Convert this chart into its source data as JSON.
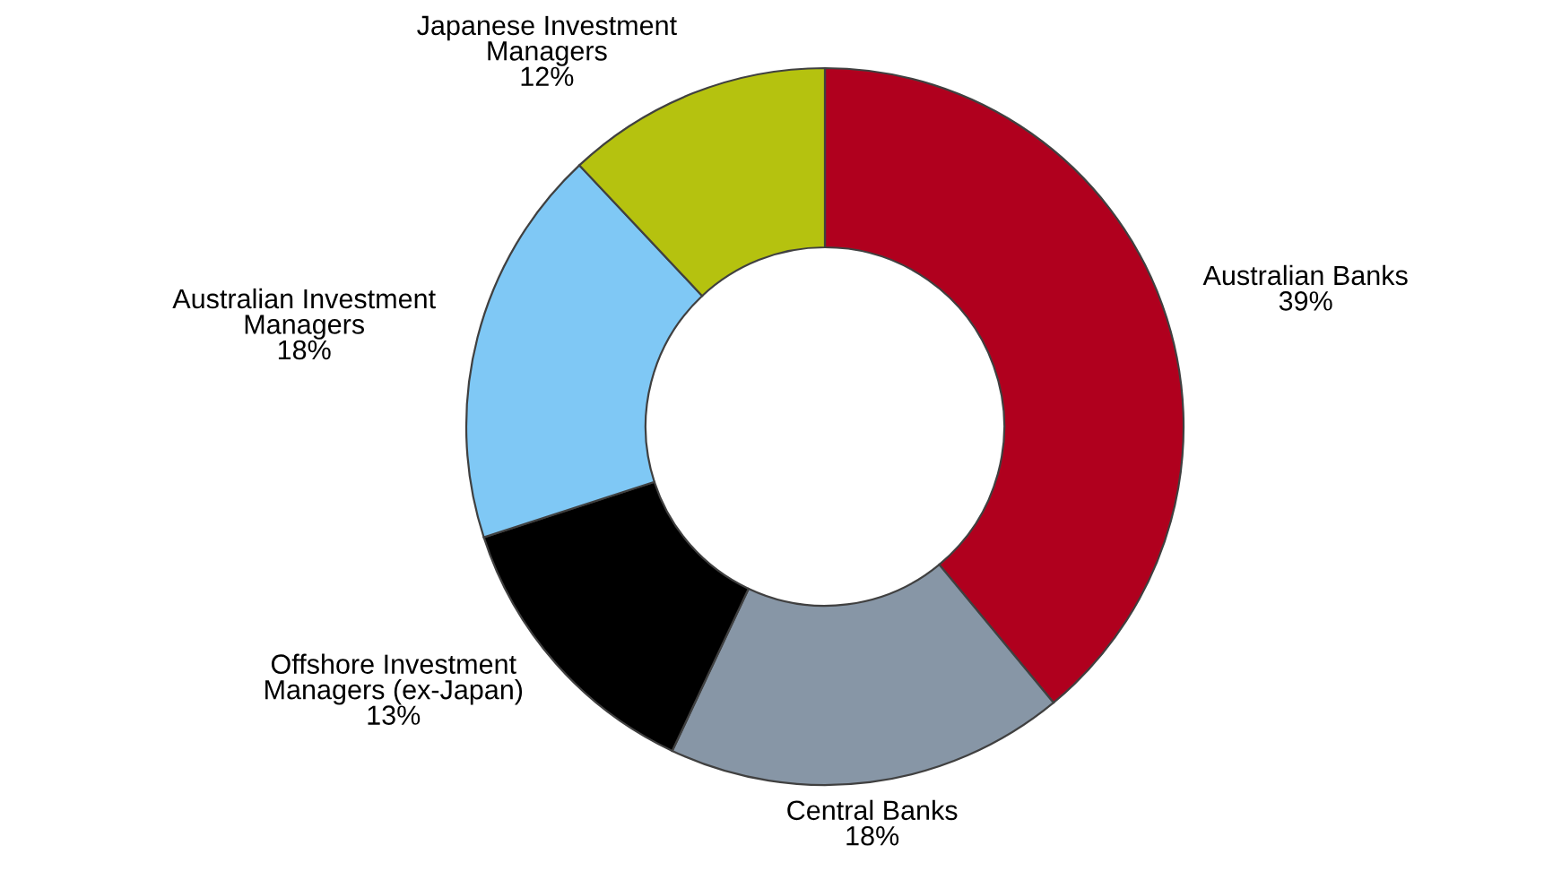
{
  "chart_data": {
    "type": "donut",
    "categories": [
      "Australian Banks",
      "Central Banks",
      "Offshore Investment\nManagers (ex-Japan)",
      "Australian Investment\nManagers",
      "Japanese Investment\nManagers"
    ],
    "values": [
      39,
      18,
      13,
      18,
      12
    ],
    "value_labels": [
      "39%",
      "18%",
      "13%",
      "18%",
      "12%"
    ],
    "colors": [
      "#b0001e",
      "#8796a6",
      "#000000",
      "#7fc8f5",
      "#b5c20f"
    ]
  }
}
